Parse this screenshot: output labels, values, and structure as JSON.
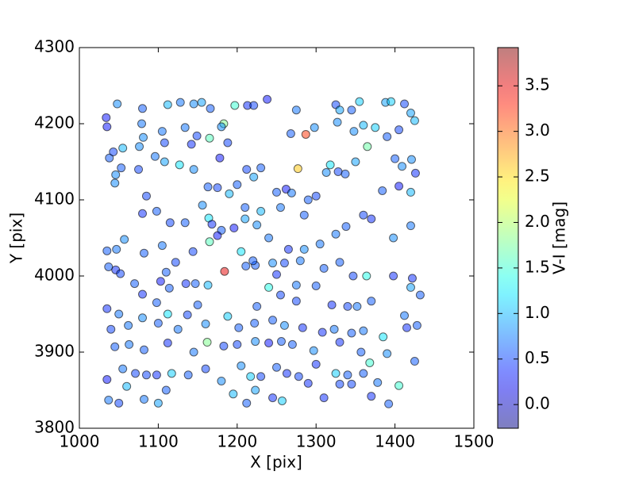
{
  "chart_data": {
    "type": "scatter",
    "x_label": "X [pix]",
    "y_label": "Y [pix]",
    "colorbar_label": "V-I [mag]",
    "xlim": [
      1000,
      1500
    ],
    "xticks": [
      1000,
      1100,
      1200,
      1300,
      1400,
      1500
    ],
    "ylim": [
      3800,
      4300
    ],
    "yticks": [
      3800,
      3900,
      4000,
      4100,
      4200,
      4300
    ],
    "clim": [
      -0.26,
      3.92
    ],
    "cticks": [
      {
        "value": 0,
        "label": "0.0"
      },
      0.5,
      {
        "value": 1,
        "label": "1.0"
      },
      1.5,
      {
        "value": 2,
        "label": "2.0"
      },
      2.5,
      {
        "value": 3,
        "label": "3.0"
      },
      3.5
    ],
    "colormap": "jet",
    "x": [
      1034,
      1035,
      1048,
      1038,
      1043,
      1055,
      1046,
      1045,
      1053,
      1080,
      1079,
      1081,
      1076,
      1112,
      1128,
      1145,
      1155,
      1166,
      1197,
      1213,
      1221,
      1238,
      1275,
      1325,
      1330,
      1345,
      1355,
      1388,
      1395,
      1412,
      1420,
      1425,
      1298,
      1327,
      1348,
      1360,
      1375,
      1405,
      1390,
      1400,
      1421,
      1409,
      1426,
      1405,
      1384,
      1420,
      1328,
      1337,
      1313,
      1318,
      1277,
      1287,
      1268,
      1365,
      1350,
      1183,
      1180,
      1165,
      1188,
      1149,
      1142,
      1127,
      1108,
      1096,
      1105,
      1108,
      1134,
      1178,
      1212,
      1221,
      1230,
      1250,
      1262,
      1269,
      1290,
      1300,
      1163,
      1175,
      1190,
      1156,
      1164,
      1168,
      1180,
      1196,
      1210,
      1225,
      1240,
      1265,
      1285,
      1305,
      1325,
      1338,
      1360,
      1370,
      1398,
      1420,
      1398,
      1364,
      1347,
      1422,
      1420,
      1432,
      1165,
      1175,
      1144,
      1105,
      1082,
      1035,
      1047,
      1057,
      1046,
      1037,
      1052,
      1070,
      1080,
      1103,
      1114,
      1135,
      1147,
      1163,
      1184,
      1211,
      1223,
      1250,
      1275,
      1300,
      1320,
      1340,
      1352,
      1370,
      1035,
      1050,
      1080,
      1112,
      1100,
      1125,
      1137,
      1160,
      1188,
      1202,
      1222,
      1245,
      1260,
      1283,
      1308,
      1323,
      1345,
      1360,
      1385,
      1415,
      1428,
      1412,
      1040,
      1045,
      1063,
      1082,
      1112,
      1145,
      1162,
      1183,
      1200,
      1223,
      1240,
      1256,
      1270,
      1297,
      1330,
      1357,
      1368,
      1390,
      1425,
      1055,
      1071,
      1085,
      1098,
      1117,
      1138,
      1160,
      1180,
      1205,
      1217,
      1230,
      1250,
      1263,
      1278,
      1300,
      1325,
      1340,
      1360,
      1378,
      1035,
      1037,
      1050,
      1060,
      1082,
      1100,
      1110,
      1195,
      1212,
      1223,
      1245,
      1257,
      1290,
      1310,
      1330,
      1345,
      1370,
      1392,
      1405,
      1210,
      1230,
      1255,
      1285,
      1205,
      1220,
      1245,
      1260,
      1280,
      1240,
      1255,
      1275,
      1225,
      1310,
      1330,
      1122,
      1110,
      1098,
      1062,
      1150,
      1200,
      1145,
      1075,
      1085,
      1080,
      1098,
      1115,
      1134
    ],
    "y": [
      4208,
      4196,
      4226,
      4155,
      4163,
      4168,
      4133,
      4122,
      4142,
      4220,
      4200,
      4182,
      4170,
      4225,
      4228,
      4226,
      4228,
      4220,
      4224,
      4224,
      4224,
      4232,
      4218,
      4225,
      4218,
      4218,
      4229,
      4228,
      4229,
      4226,
      4214,
      4204,
      4195,
      4202,
      4190,
      4198,
      4195,
      4192,
      4183,
      4154,
      4153,
      4144,
      4135,
      4118,
      4112,
      4110,
      4137,
      4134,
      4136,
      4146,
      4141,
      4186,
      4187,
      4170,
      4150,
      4200,
      4196,
      4181,
      4175,
      4184,
      4173,
      4146,
      4150,
      4157,
      4190,
      4175,
      4195,
      4155,
      4140,
      4130,
      4142,
      4110,
      4114,
      4109,
      4100,
      4105,
      4117,
      4116,
      4108,
      4093,
      4076,
      4068,
      4060,
      4063,
      4075,
      4067,
      4050,
      4035,
      4035,
      4042,
      4055,
      4065,
      4080,
      4075,
      4050,
      4066,
      4000,
      4000,
      4000,
      3997,
      3985,
      3975,
      4045,
      4053,
      4032,
      4040,
      4030,
      4033,
      4035,
      4048,
      4008,
      4012,
      4003,
      3990,
      3976,
      3993,
      3984,
      3990,
      3990,
      3988,
      4006,
      4013,
      4014,
      4002,
      3988,
      3987,
      3962,
      3960,
      3960,
      3967,
      3957,
      3950,
      3945,
      3950,
      3938,
      3930,
      3949,
      3937,
      3947,
      3932,
      3938,
      3942,
      3935,
      3932,
      3926,
      3930,
      3925,
      3928,
      3920,
      3932,
      3935,
      3948,
      3930,
      3907,
      3910,
      3903,
      3912,
      3900,
      3913,
      3908,
      3910,
      3914,
      3912,
      3914,
      3910,
      3902,
      3913,
      3900,
      3886,
      3898,
      3888,
      3878,
      3872,
      3870,
      3870,
      3872,
      3870,
      3878,
      3862,
      3882,
      3868,
      3868,
      3880,
      3872,
      3868,
      3884,
      3872,
      3870,
      3872,
      3860,
      3864,
      3837,
      3833,
      3855,
      3838,
      3833,
      3850,
      3845,
      3833,
      3850,
      3840,
      3836,
      3859,
      3840,
      3858,
      3858,
      3842,
      3832,
      3856,
      4090,
      4085,
      4090,
      4080,
      4032,
      4020,
      4017,
      4017,
      4020,
      3985,
      3975,
      3967,
      3960,
      4010,
      4018,
      4018,
      4005,
      3965,
      3935,
      3962,
      4120,
      4140,
      4140,
      4105,
      4082,
      4085,
      4070,
      4070
    ],
    "c": [
      0.3,
      0.3,
      0.8,
      0.6,
      0.5,
      1.0,
      0.8,
      0.8,
      0.6,
      0.6,
      0.7,
      0.8,
      0.8,
      1.0,
      0.7,
      0.8,
      0.9,
      0.6,
      1.5,
      0.4,
      0.5,
      0.3,
      0.7,
      0.5,
      0.9,
      0.6,
      1.1,
      0.9,
      1.1,
      0.5,
      0.9,
      1.0,
      0.8,
      0.8,
      0.8,
      1.0,
      1.1,
      0.5,
      0.6,
      0.6,
      0.8,
      0.8,
      0.4,
      0.3,
      0.6,
      1.0,
      0.5,
      0.6,
      0.8,
      1.2,
      2.6,
      3.2,
      0.6,
      1.7,
      0.9,
      1.8,
      0.8,
      1.6,
      0.5,
      0.5,
      0.4,
      1.2,
      0.9,
      0.7,
      0.7,
      0.5,
      0.7,
      0.3,
      0.5,
      0.9,
      0.6,
      0.6,
      0.3,
      0.7,
      0.6,
      0.5,
      0.6,
      0.5,
      1.0,
      0.8,
      1.2,
      0.4,
      0.6,
      0.3,
      0.9,
      0.8,
      0.7,
      0.4,
      0.8,
      0.7,
      0.7,
      0.6,
      0.5,
      0.4,
      0.8,
      0.7,
      0.4,
      1.4,
      0.5,
      0.4,
      0.9,
      0.6,
      1.6,
      0.3,
      0.5,
      0.7,
      0.6,
      0.6,
      0.7,
      0.8,
      0.4,
      0.6,
      0.5,
      0.6,
      0.4,
      0.3,
      0.6,
      0.4,
      0.6,
      1.0,
      3.5,
      0.6,
      0.6,
      0.4,
      0.7,
      0.6,
      0.4,
      0.5,
      0.7,
      0.6,
      0.4,
      0.7,
      0.8,
      1.2,
      0.6,
      0.7,
      0.5,
      0.8,
      1.1,
      0.6,
      0.6,
      0.6,
      0.8,
      0.4,
      0.4,
      0.7,
      0.6,
      0.7,
      1.2,
      0.4,
      0.6,
      0.7,
      0.5,
      0.6,
      0.7,
      0.6,
      0.4,
      0.7,
      1.8,
      0.5,
      0.5,
      0.8,
      0.3,
      0.6,
      0.6,
      0.8,
      0.4,
      0.6,
      1.5,
      0.8,
      0.6,
      0.7,
      0.5,
      0.5,
      0.4,
      1.1,
      0.6,
      0.5,
      0.8,
      0.8,
      1.1,
      0.5,
      0.6,
      0.4,
      0.5,
      0.4,
      1.1,
      0.6,
      0.6,
      0.7,
      0.3,
      0.7,
      0.5,
      1.0,
      0.7,
      0.9,
      0.6,
      1.0,
      0.6,
      0.9,
      0.4,
      1.1,
      0.4,
      0.4,
      0.5,
      0.5,
      0.4,
      0.6,
      1.5,
      0.6,
      1.0,
      0.7,
      0.6,
      1.2,
      0.6,
      0.8,
      0.5,
      0.7,
      1.4,
      0.5,
      0.5,
      0.6,
      0.6,
      0.6,
      0.5,
      0.6,
      0.6,
      0.7,
      0.6,
      0.6,
      0.8,
      0.5,
      0.5,
      0.4,
      0.6,
      0.5,
      0.6
    ]
  }
}
